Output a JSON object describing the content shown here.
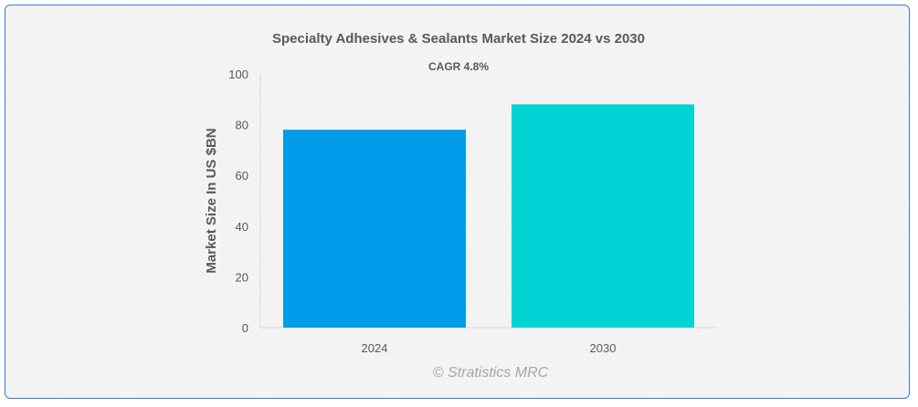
{
  "chart_data": {
    "type": "bar",
    "title": "Specialty Adhesives & Sealants Market Size 2024 vs 2030",
    "subtitle": "CAGR 4.8%",
    "ylabel": "Market Size In US $BN",
    "xlabel": "",
    "categories": [
      "2024",
      "2030"
    ],
    "values": [
      78,
      88
    ],
    "colors": [
      "#039cec",
      "#00d4d4"
    ],
    "ylim": [
      0,
      100
    ],
    "yticks": [
      0,
      20,
      40,
      60,
      80,
      100
    ],
    "grid": false,
    "legend": "none"
  },
  "watermark": "© Stratistics MRC"
}
